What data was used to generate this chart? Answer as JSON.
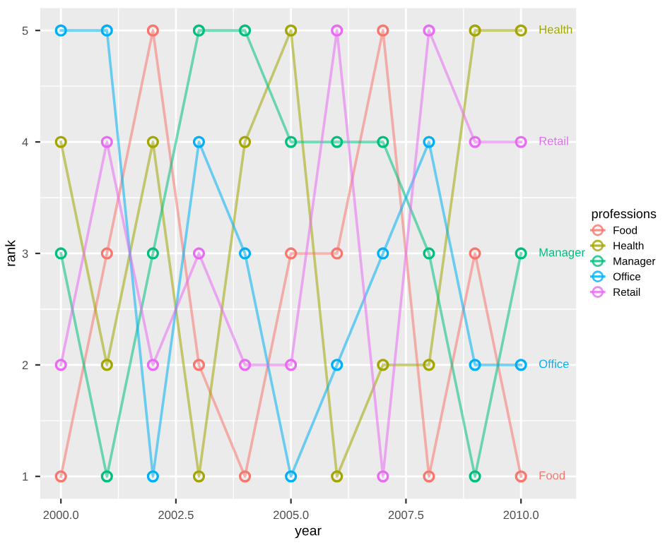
{
  "chart_data": {
    "type": "line",
    "xlabel": "year",
    "ylabel": "rank",
    "legend_title": "professions",
    "x": [
      2000,
      2001,
      2002,
      2003,
      2004,
      2005,
      2006,
      2007,
      2008,
      2009,
      2010
    ],
    "series": [
      {
        "name": "Food",
        "color": "#f8766d",
        "values": [
          1,
          3,
          5,
          2,
          1,
          3,
          3,
          5,
          1,
          3,
          1
        ]
      },
      {
        "name": "Health",
        "color": "#a3a500",
        "values": [
          4,
          2,
          4,
          1,
          4,
          5,
          1,
          2,
          2,
          5,
          5
        ]
      },
      {
        "name": "Manager",
        "color": "#00bf7d",
        "values": [
          3,
          1,
          3,
          5,
          5,
          4,
          4,
          4,
          3,
          1,
          3
        ]
      },
      {
        "name": "Office",
        "color": "#00b0f6",
        "values": [
          5,
          5,
          1,
          4,
          3,
          1,
          2,
          3,
          4,
          2,
          2
        ]
      },
      {
        "name": "Retail",
        "color": "#e76bf3",
        "values": [
          2,
          4,
          2,
          3,
          2,
          2,
          5,
          1,
          5,
          4,
          4
        ]
      }
    ],
    "xlim": [
      1999.55,
      2011.2
    ],
    "ylim": [
      0.8,
      5.2
    ],
    "xticks": [
      {
        "value": 2000,
        "label": "2000.0"
      },
      2002.5,
      {
        "value": 2005,
        "label": "2005.0"
      },
      2007.5,
      {
        "value": 2010,
        "label": "2010.0"
      }
    ],
    "yticks": [
      1,
      2,
      3,
      4,
      5
    ],
    "grid": true,
    "legend": "right",
    "marker": "circle",
    "line_style": "solid"
  }
}
